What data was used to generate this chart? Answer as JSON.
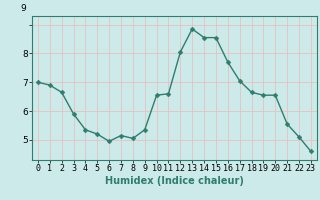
{
  "x": [
    0,
    1,
    2,
    3,
    4,
    5,
    6,
    7,
    8,
    9,
    10,
    11,
    12,
    13,
    14,
    15,
    16,
    17,
    18,
    19,
    20,
    21,
    22,
    23
  ],
  "y": [
    7.0,
    6.9,
    6.65,
    5.9,
    5.35,
    5.2,
    4.95,
    5.15,
    5.05,
    5.35,
    6.55,
    6.6,
    8.05,
    8.85,
    8.55,
    8.55,
    7.7,
    7.05,
    6.65,
    6.55,
    6.55,
    5.55,
    5.1,
    4.6
  ],
  "line_color": "#2e7d6e",
  "marker": "D",
  "markersize": 2.5,
  "linewidth": 1.0,
  "bg_color": "#cceaea",
  "grid_color": "#e8c0c0",
  "xlabel": "Humidex (Indice chaleur)",
  "xlim": [
    -0.5,
    23.5
  ],
  "ylim": [
    4.3,
    9.3
  ],
  "yticks": [
    5,
    6,
    7,
    8,
    9
  ],
  "xticks": [
    0,
    1,
    2,
    3,
    4,
    5,
    6,
    7,
    8,
    9,
    10,
    11,
    12,
    13,
    14,
    15,
    16,
    17,
    18,
    19,
    20,
    21,
    22,
    23
  ],
  "xlabel_fontsize": 7,
  "tick_fontsize": 6.5,
  "figsize": [
    3.2,
    2.0
  ],
  "dpi": 100
}
